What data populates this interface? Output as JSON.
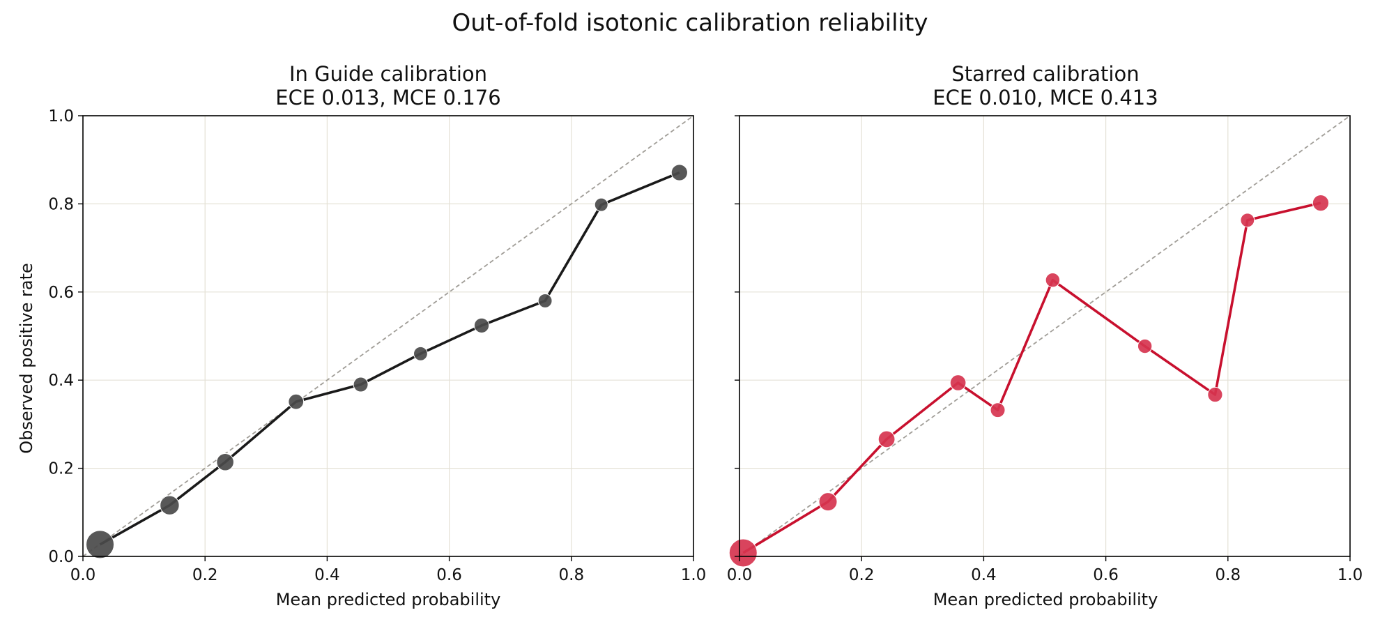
{
  "figure": {
    "title": "Out-of-fold isotonic calibration reliability"
  },
  "colors": {
    "grid": "#e4e1d6",
    "reference": "#a09d97",
    "axes": "#000000"
  },
  "chart_data": [
    {
      "type": "line",
      "title_line1": "In Guide calibration",
      "title_line2": "ECE 0.013, MCE 0.176",
      "xlabel": "Mean predicted probability",
      "ylabel": "Observed positive rate",
      "xlim": [
        0,
        1
      ],
      "ylim": [
        0,
        1
      ],
      "xticks": [
        "0.0",
        "0.2",
        "0.4",
        "0.6",
        "0.8",
        "1.0"
      ],
      "yticks": [
        "0.0",
        "0.2",
        "0.4",
        "0.6",
        "0.8",
        "1.0"
      ],
      "grid": true,
      "reference_line": "diagonal dashed (perfect calibration)",
      "line_color": "#1a1a1a",
      "marker_color": "#4a4a4a",
      "marker_size_meaning": "bin count (relative)",
      "points": [
        {
          "x": 0.028,
          "y": 0.027,
          "size": 1.0
        },
        {
          "x": 0.142,
          "y": 0.116,
          "size": 0.55
        },
        {
          "x": 0.233,
          "y": 0.214,
          "size": 0.45
        },
        {
          "x": 0.349,
          "y": 0.351,
          "size": 0.35
        },
        {
          "x": 0.455,
          "y": 0.39,
          "size": 0.32
        },
        {
          "x": 0.553,
          "y": 0.46,
          "size": 0.28
        },
        {
          "x": 0.653,
          "y": 0.524,
          "size": 0.33
        },
        {
          "x": 0.757,
          "y": 0.58,
          "size": 0.28
        },
        {
          "x": 0.849,
          "y": 0.798,
          "size": 0.25
        },
        {
          "x": 0.977,
          "y": 0.871,
          "size": 0.4
        }
      ]
    },
    {
      "type": "line",
      "title_line1": "Starred calibration",
      "title_line2": "ECE 0.010, MCE 0.413",
      "xlabel": "Mean predicted probability",
      "ylabel": "",
      "xlim": [
        0,
        1
      ],
      "ylim": [
        0,
        1
      ],
      "xticks": [
        "0.0",
        "0.2",
        "0.4",
        "0.6",
        "0.8",
        "1.0"
      ],
      "yticks": [
        "",
        "",
        "",
        "",
        "",
        ""
      ],
      "grid": true,
      "reference_line": "diagonal dashed (perfect calibration)",
      "line_color": "#c8102e",
      "marker_color": "#d6344f",
      "marker_size_meaning": "bin count (relative)",
      "points": [
        {
          "x": 0.006,
          "y": 0.008,
          "size": 1.0
        },
        {
          "x": 0.145,
          "y": 0.124,
          "size": 0.5
        },
        {
          "x": 0.241,
          "y": 0.266,
          "size": 0.42
        },
        {
          "x": 0.358,
          "y": 0.394,
          "size": 0.38
        },
        {
          "x": 0.423,
          "y": 0.332,
          "size": 0.32
        },
        {
          "x": 0.513,
          "y": 0.627,
          "size": 0.3
        },
        {
          "x": 0.664,
          "y": 0.477,
          "size": 0.3
        },
        {
          "x": 0.779,
          "y": 0.367,
          "size": 0.33
        },
        {
          "x": 0.832,
          "y": 0.763,
          "size": 0.28
        },
        {
          "x": 0.952,
          "y": 0.802,
          "size": 0.4
        }
      ]
    }
  ]
}
